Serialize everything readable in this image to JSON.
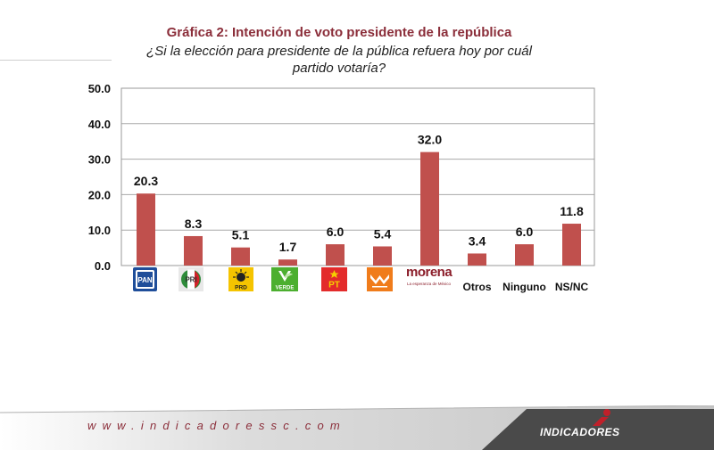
{
  "header": {
    "title": "Gráfica 2: Intención de voto presidente de la república",
    "subtitle": "¿Si la elección para presidente de la pública refuera hoy por cuál partido votaría?"
  },
  "chart_data": {
    "type": "bar",
    "categories": [
      "PAN",
      "PRI",
      "PRD",
      "VERDE",
      "PT",
      "MC",
      "morena",
      "Otros",
      "Ninguno",
      "NS/NC"
    ],
    "category_display": [
      "logo",
      "logo",
      "logo",
      "logo",
      "logo",
      "logo",
      "logo",
      "Otros",
      "Ninguno",
      "NS/NC"
    ],
    "values": [
      20.3,
      8.3,
      5.1,
      1.7,
      6.0,
      5.4,
      32.0,
      3.4,
      6.0,
      11.8
    ],
    "value_labels": [
      "20.3",
      "8.3",
      "5.1",
      "1.7",
      "6.0",
      "5.4",
      "32.0",
      "3.4",
      "6.0",
      "11.8"
    ],
    "ylim": [
      0,
      50
    ],
    "yticks": [
      "0.0",
      "10.0",
      "20.0",
      "30.0",
      "40.0",
      "50.0"
    ],
    "grid": true,
    "bar_color": "#c0504d"
  },
  "logos": {
    "pan": "PAN",
    "pri": "PRI",
    "prd": "PRD",
    "verde": "VERDE",
    "pt": "PT",
    "morena_name": "morena",
    "morena_tag": "La esperanza de México"
  },
  "footer": {
    "url": "www.indicadoressc.com",
    "brand": "INDICADORES"
  },
  "colors": {
    "title": "#8b2e3a",
    "pan": "#1f4e9a",
    "pri_green": "#2e8b3a",
    "pri_red": "#d2232a",
    "prd": "#f5c400",
    "verde": "#4caf2f",
    "pt": "#e32b2b",
    "mc": "#f07c1b",
    "morena": "#8b1e2a"
  }
}
